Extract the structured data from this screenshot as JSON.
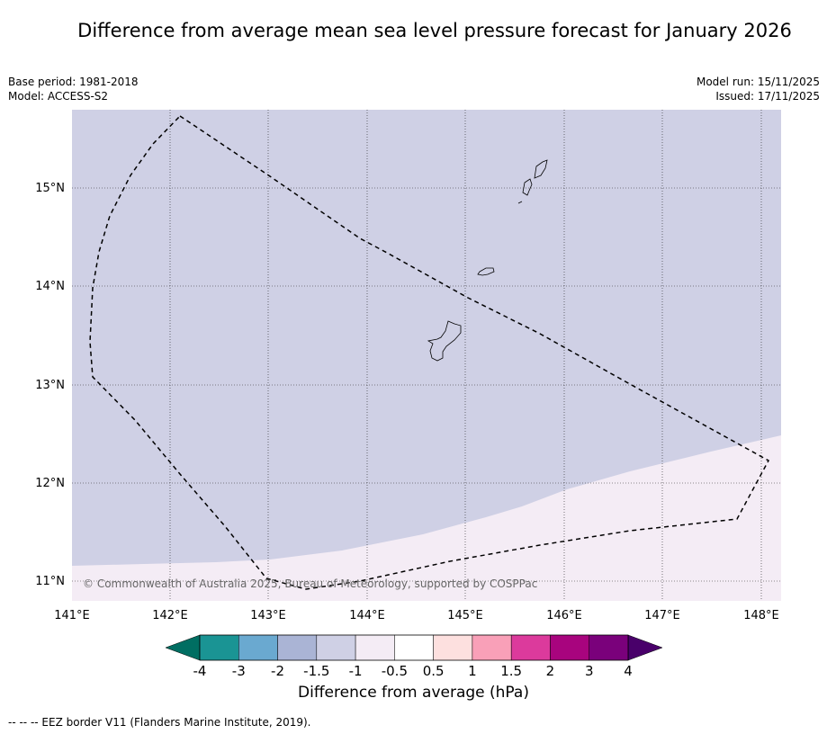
{
  "title": "Difference from average mean sea level pressure forecast for January 2026",
  "meta": {
    "base_period": "Base period: 1981-2018",
    "model": "Model: ACCESS-S2",
    "model_run": "Model run: 15/11/2025",
    "issued": "Issued: 17/11/2025"
  },
  "map": {
    "lon_labels": [
      "141°E",
      "142°E",
      "143°E",
      "144°E",
      "145°E",
      "146°E",
      "147°E",
      "148°E"
    ],
    "lat_labels": [
      "15°N",
      "14°N",
      "13°N",
      "12°N",
      "11°N"
    ],
    "copyright": "© Commonwealth of Australia 2025, Bureau of Meteorology, supported by COSPPac",
    "colors": {
      "band_lower": "#cfd0e5",
      "band_upper": "#f4ecf5",
      "eez_line": "#000000"
    }
  },
  "colorbar": {
    "label": "Difference from average (hPa)",
    "ticks": [
      "-4",
      "-3",
      "-2",
      "-1.5",
      "-1",
      "-0.5",
      "0.5",
      "1",
      "1.5",
      "2",
      "3",
      "4"
    ],
    "colors": [
      "#1a9494",
      "#6aa9d0",
      "#aab4d5",
      "#cfd0e5",
      "#f4ecf5",
      "#ffffff",
      "#fde0df",
      "#f9a0b8",
      "#dc3a9c",
      "#a8047e",
      "#7a017b"
    ],
    "under_color": "#006e62",
    "over_color": "#49006a"
  },
  "legend_footer": "--  --  -- EEZ border V11 (Flanders Marine Institute, 2019)."
}
